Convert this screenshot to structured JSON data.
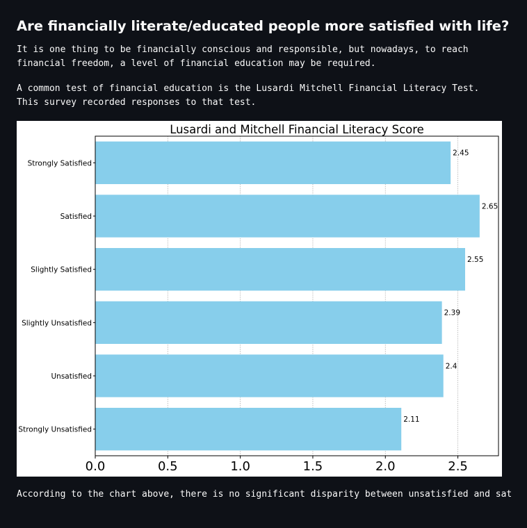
{
  "header": {
    "title": "Are financially literate/educated people more satisfied with life?"
  },
  "intro": {
    "line1": "It is one thing to be financially conscious and responsible, but nowadays, to reach",
    "line2": "financial freedom, a level of financial education may be required.",
    "line3": "A common test of financial education is the Lusardi Mitchell Financial Literacy Test.",
    "line4": "This survey recorded responses to that test."
  },
  "conclusion": {
    "text": "According to the chart above, there is no significant disparity between unsatisfied and sat"
  },
  "colors": {
    "bar": "#87ceeb",
    "page_bg": "#0e1117"
  },
  "chart_data": {
    "type": "bar",
    "orientation": "horizontal",
    "title": "Lusardi and Mitchell Financial Literacy Score",
    "xlabel": "",
    "ylabel": "",
    "categories": [
      "Strongly Satisfied",
      "Satisfied",
      "Slightly Satisfied",
      "Slightly Unsatisfied",
      "Unsatisfied",
      "Strongly Unsatisfied"
    ],
    "values": [
      2.45,
      2.65,
      2.55,
      2.39,
      2.4,
      2.11
    ],
    "data_labels": [
      "2.45",
      "2.65",
      "2.55",
      "2.39",
      "2.4",
      "2.11"
    ],
    "xlim": [
      0,
      2.78
    ],
    "xticks": [
      0.0,
      0.5,
      1.0,
      1.5,
      2.0,
      2.5
    ],
    "xtick_labels": [
      "0.0",
      "0.5",
      "1.0",
      "1.5",
      "2.0",
      "2.5"
    ],
    "grid": "vertical"
  }
}
